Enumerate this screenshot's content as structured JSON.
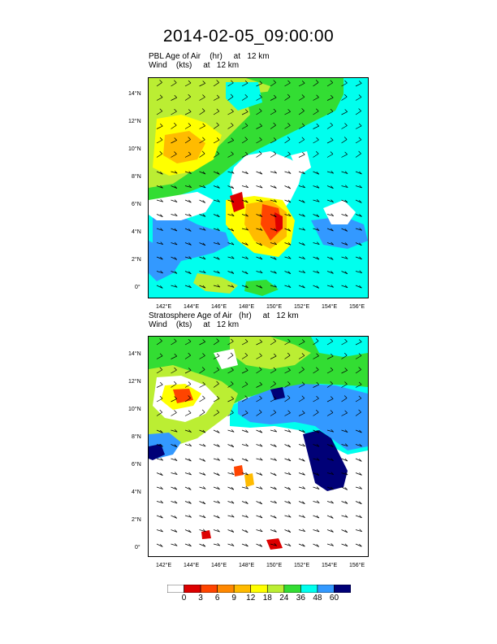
{
  "title": "2014-02-05_09:00:00",
  "panels": [
    {
      "line1": "PBL Age of Air    (hr)     at   12 km",
      "line2": "Wind    (kts)     at   12 km",
      "lat_labels": [
        "14°N",
        "12°N",
        "10°N",
        "8°N",
        "6°N",
        "4°N",
        "2°N",
        "0°"
      ],
      "lon_labels": [
        "142°E",
        "144°E",
        "146°E",
        "148°E",
        "150°E",
        "152°E",
        "154°E",
        "156°E"
      ]
    },
    {
      "line1": "Stratosphere Age of Air   (hr)     at   12 km",
      "line2": "Wind    (kts)     at   12 km",
      "lat_labels": [
        "14°N",
        "12°N",
        "10°N",
        "8°N",
        "6°N",
        "4°N",
        "2°N",
        "0°"
      ],
      "lon_labels": [
        "142°E",
        "144°E",
        "146°E",
        "148°E",
        "150°E",
        "152°E",
        "154°E",
        "156°E"
      ]
    }
  ],
  "colorbar": {
    "colors": [
      "#ffffff",
      "#dd0000",
      "#ff4400",
      "#ff8800",
      "#ffbb00",
      "#ffff00",
      "#bbee33",
      "#33dd33",
      "#00ffee",
      "#3399ff",
      "#000077"
    ],
    "labels": [
      "0",
      "3",
      "6",
      "9",
      "12",
      "18",
      "24",
      "36",
      "48",
      "60"
    ]
  }
}
